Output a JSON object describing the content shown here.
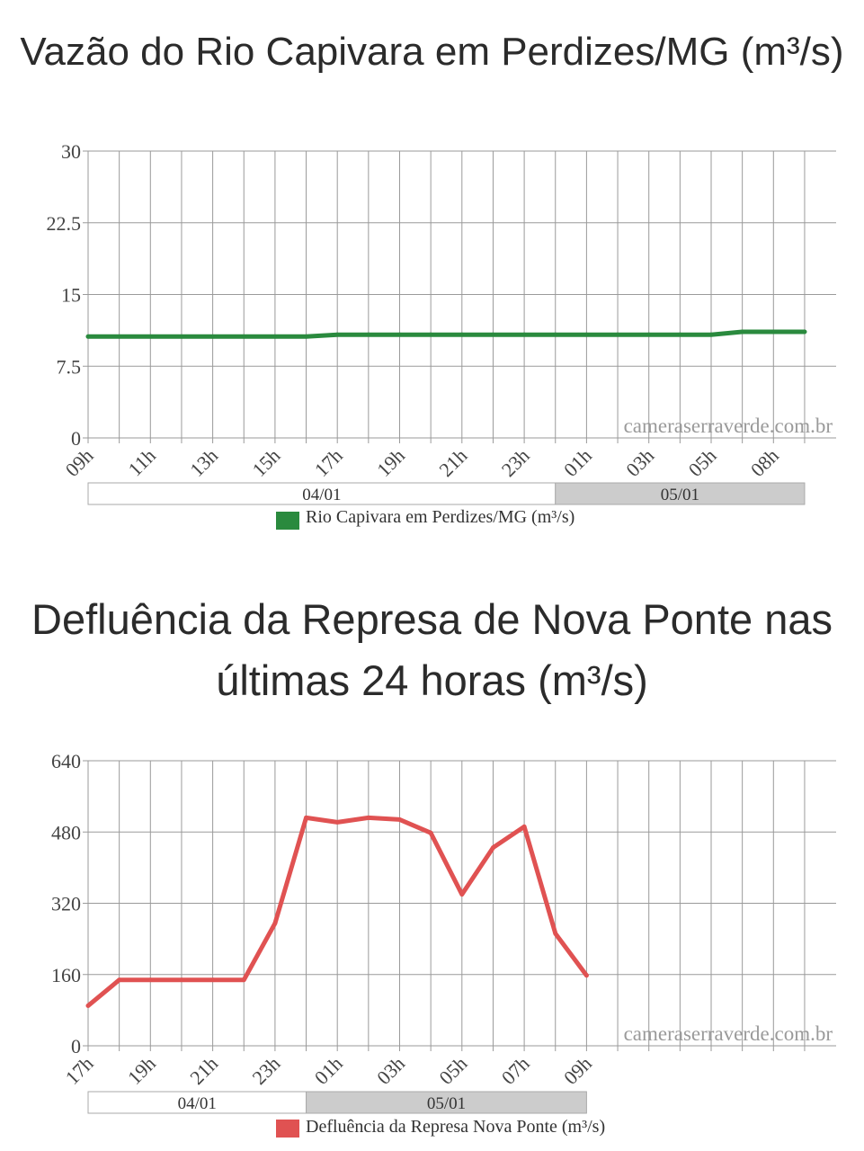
{
  "chart_data": [
    {
      "type": "line",
      "title": "Vazão do Rio Capivara em Perdizes/MG (m³/s)",
      "ylim": [
        0,
        30
      ],
      "yticks": [
        "30",
        "22.5",
        "15",
        "7.5",
        "0"
      ],
      "x": [
        "09h",
        "10h",
        "11h",
        "12h",
        "13h",
        "14h",
        "15h",
        "16h",
        "17h",
        "18h",
        "19h",
        "20h",
        "21h",
        "22h",
        "23h",
        "00h",
        "01h",
        "02h",
        "03h",
        "04h",
        "05h",
        "06h",
        "08h",
        "09h"
      ],
      "x_tick_labels": [
        "09h",
        "11h",
        "13h",
        "15h",
        "17h",
        "19h",
        "21h",
        "23h",
        "01h",
        "03h",
        "05h",
        "08h"
      ],
      "series": [
        {
          "name": "Rio Capivara em Perdizes/MG (m³/s)",
          "color": "#2a8a3e",
          "values": [
            10.6,
            10.6,
            10.6,
            10.6,
            10.6,
            10.6,
            10.6,
            10.6,
            10.8,
            10.8,
            10.8,
            10.8,
            10.8,
            10.8,
            10.8,
            10.8,
            10.8,
            10.8,
            10.8,
            10.8,
            10.8,
            11.1,
            11.1,
            11.1
          ]
        }
      ],
      "date_bands": [
        {
          "label": "04/01",
          "from": 0,
          "to": 15,
          "fill": "#ffffff"
        },
        {
          "label": "05/01",
          "from": 15,
          "to": 23,
          "fill": "#cccccc"
        }
      ],
      "watermark": "cameraserraverde.com.br",
      "grid": true,
      "legend_position": "bottom"
    },
    {
      "type": "line",
      "title": "Defluência da Represa de Nova Ponte nas últimas 24 horas (m³/s)",
      "ylim": [
        0,
        640
      ],
      "yticks": [
        "640",
        "480",
        "320",
        "160",
        "0"
      ],
      "x": [
        "17h",
        "18h",
        "19h",
        "20h",
        "21h",
        "22h",
        "23h",
        "00h",
        "01h",
        "02h",
        "03h",
        "04h",
        "05h",
        "06h",
        "07h",
        "08h",
        "09h",
        "10h",
        "11h",
        "12h",
        "13h",
        "14h",
        "15h",
        "16h"
      ],
      "x_tick_labels": [
        "17h",
        "19h",
        "21h",
        "23h",
        "01h",
        "03h",
        "05h",
        "07h",
        "09h"
      ],
      "series": [
        {
          "name": "Defluência da Represa Nova Ponte (m³/s)",
          "color": "#e05252",
          "values": [
            90,
            148,
            148,
            148,
            148,
            148,
            275,
            512,
            502,
            512,
            508,
            478,
            340,
            445,
            492,
            252,
            158,
            null,
            null,
            null,
            null,
            null,
            null,
            null
          ]
        }
      ],
      "date_bands": [
        {
          "label": "04/01",
          "from": 0,
          "to": 7,
          "fill": "#ffffff"
        },
        {
          "label": "05/01",
          "from": 7,
          "to": 16,
          "fill": "#cccccc"
        }
      ],
      "watermark": "cameraserraverde.com.br",
      "grid": true,
      "legend_position": "bottom"
    }
  ]
}
